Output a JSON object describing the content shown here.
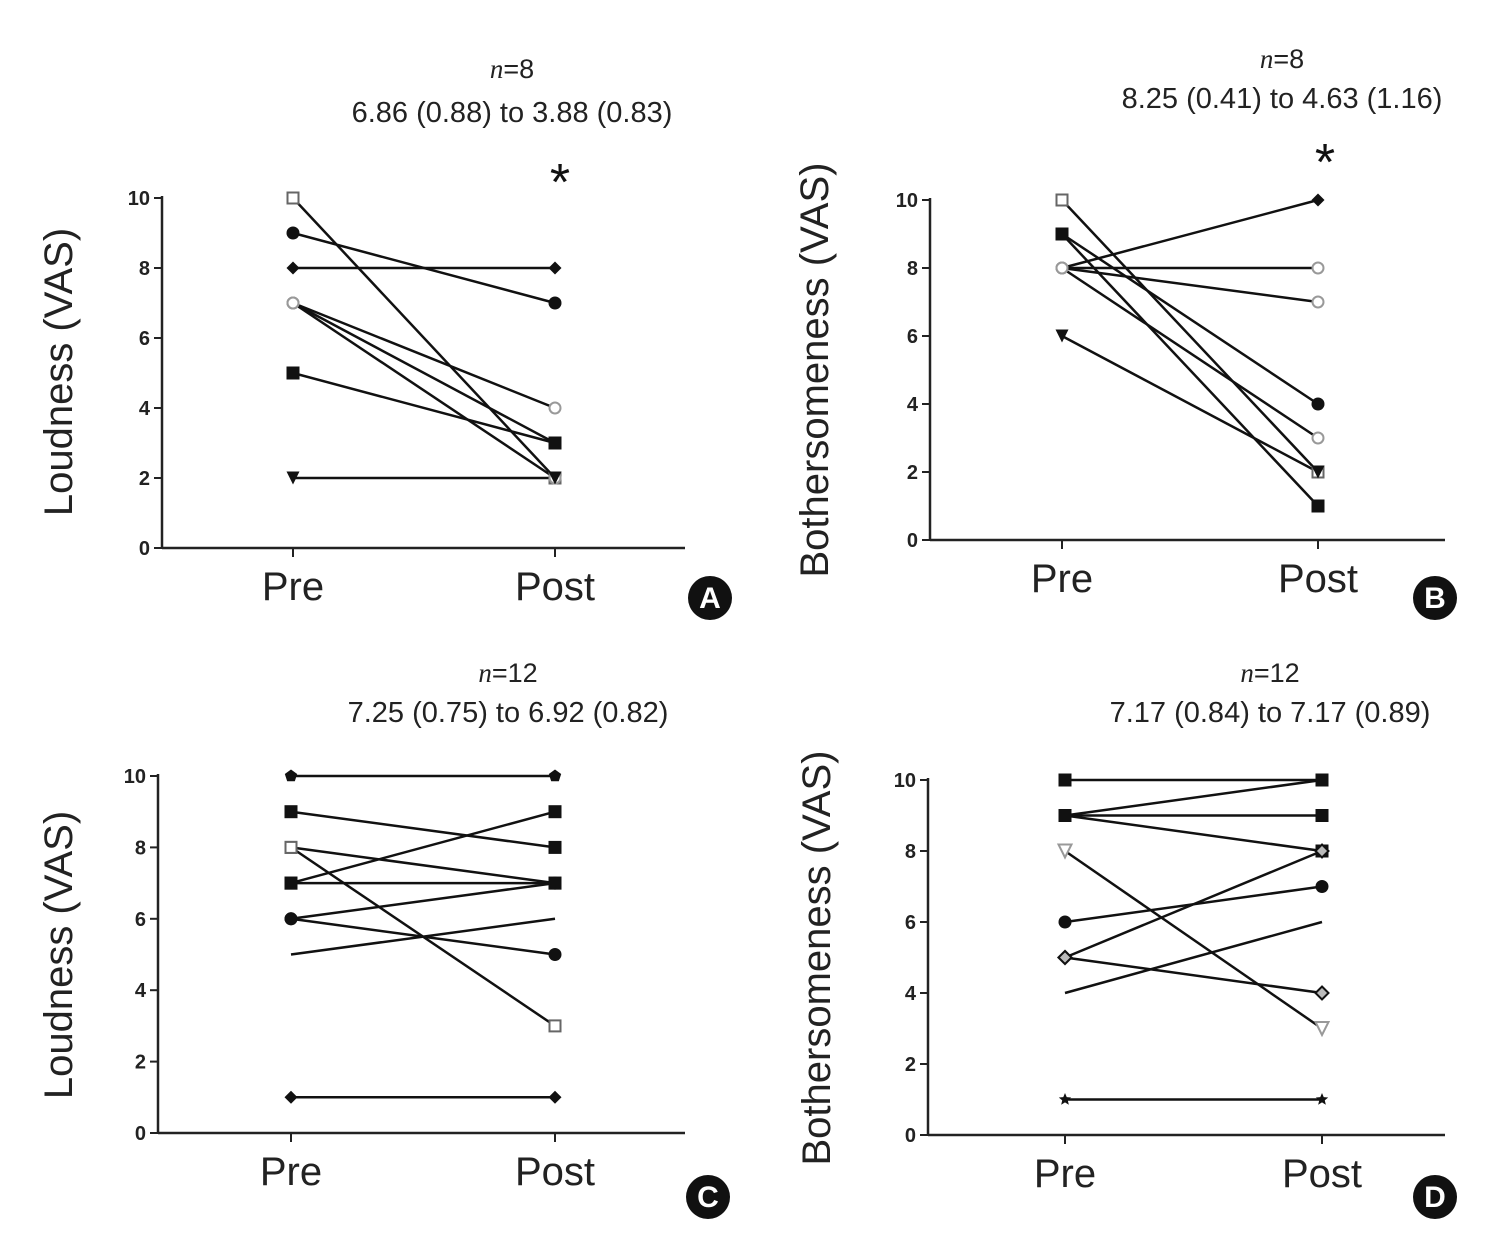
{
  "chart_data": [
    {
      "panel": "A",
      "type": "line",
      "n_text": "n=8",
      "summary": "6.86 (0.88) to 3.88 (0.83)",
      "annotation": "*",
      "ylabel": "Loudness (VAS)",
      "categories": [
        "Pre",
        "Post"
      ],
      "ylim": [
        0,
        10
      ],
      "yticks": [
        0,
        2,
        4,
        6,
        8,
        10
      ],
      "series": [
        {
          "marker": "square-open",
          "values": [
            10,
            2
          ]
        },
        {
          "marker": "circle",
          "values": [
            9,
            7
          ]
        },
        {
          "marker": "diamond",
          "values": [
            8,
            8
          ]
        },
        {
          "marker": "circle-open",
          "values": [
            7,
            4
          ]
        },
        {
          "marker": "circle-open",
          "values": [
            7,
            3
          ]
        },
        {
          "marker": "circle-open",
          "values": [
            7,
            2
          ]
        },
        {
          "marker": "square",
          "values": [
            5,
            3
          ]
        },
        {
          "marker": "triangle-down",
          "values": [
            2,
            2
          ]
        }
      ]
    },
    {
      "panel": "B",
      "type": "line",
      "n_text": "n=8",
      "summary": "8.25 (0.41) to 4.63 (1.16)",
      "annotation": "*",
      "ylabel": "Bothersomeness (VAS)",
      "categories": [
        "Pre",
        "Post"
      ],
      "ylim": [
        0,
        10
      ],
      "yticks": [
        0,
        2,
        4,
        6,
        8,
        10
      ],
      "series": [
        {
          "marker": "square-open",
          "values": [
            10,
            2
          ]
        },
        {
          "marker": "circle",
          "values": [
            9,
            4
          ]
        },
        {
          "marker": "square",
          "values": [
            9,
            1
          ]
        },
        {
          "marker": "diamond",
          "values": [
            8,
            10
          ]
        },
        {
          "marker": "circle-open",
          "values": [
            8,
            8
          ]
        },
        {
          "marker": "circle-open",
          "values": [
            8,
            7
          ]
        },
        {
          "marker": "circle-open",
          "values": [
            8,
            3
          ]
        },
        {
          "marker": "triangle-down",
          "values": [
            6,
            2
          ]
        }
      ]
    },
    {
      "panel": "C",
      "type": "line",
      "n_text": "n=12",
      "summary": "7.25 (0.75) to 6.92 (0.82)",
      "ylabel": "Loudness (VAS)",
      "categories": [
        "Pre",
        "Post"
      ],
      "ylim": [
        0,
        10
      ],
      "yticks": [
        0,
        2,
        4,
        6,
        8,
        10
      ],
      "series": [
        {
          "marker": "pentagon",
          "values": [
            10,
            10
          ]
        },
        {
          "marker": "square",
          "values": [
            9,
            8
          ]
        },
        {
          "marker": "square-open",
          "values": [
            8,
            7
          ]
        },
        {
          "marker": "square-open",
          "values": [
            8,
            3
          ]
        },
        {
          "marker": "square",
          "values": [
            7,
            9
          ]
        },
        {
          "marker": "square",
          "values": [
            7,
            7
          ]
        },
        {
          "marker": "circle",
          "values": [
            6,
            7
          ]
        },
        {
          "marker": "circle",
          "values": [
            6,
            5
          ]
        },
        {
          "marker": "none",
          "values": [
            5,
            6
          ]
        },
        {
          "marker": "diamond",
          "values": [
            1,
            1
          ]
        }
      ]
    },
    {
      "panel": "D",
      "type": "line",
      "n_text": "n=12",
      "summary": "7.17 (0.84) to 7.17 (0.89)",
      "ylabel": "Bothersomeness (VAS)",
      "categories": [
        "Pre",
        "Post"
      ],
      "ylim": [
        0,
        10
      ],
      "yticks": [
        0,
        2,
        4,
        6,
        8,
        10
      ],
      "series": [
        {
          "marker": "square",
          "values": [
            10,
            10
          ]
        },
        {
          "marker": "square",
          "values": [
            9,
            10
          ]
        },
        {
          "marker": "square",
          "values": [
            9,
            9
          ]
        },
        {
          "marker": "square",
          "values": [
            9,
            8
          ]
        },
        {
          "marker": "triangle-down-open",
          "values": [
            8,
            3
          ]
        },
        {
          "marker": "circle",
          "values": [
            6,
            7
          ]
        },
        {
          "marker": "diamond-open",
          "values": [
            5,
            8
          ]
        },
        {
          "marker": "diamond-open",
          "values": [
            5,
            4
          ]
        },
        {
          "marker": "none",
          "values": [
            4,
            6
          ]
        },
        {
          "marker": "star",
          "values": [
            1,
            1
          ]
        }
      ]
    }
  ]
}
